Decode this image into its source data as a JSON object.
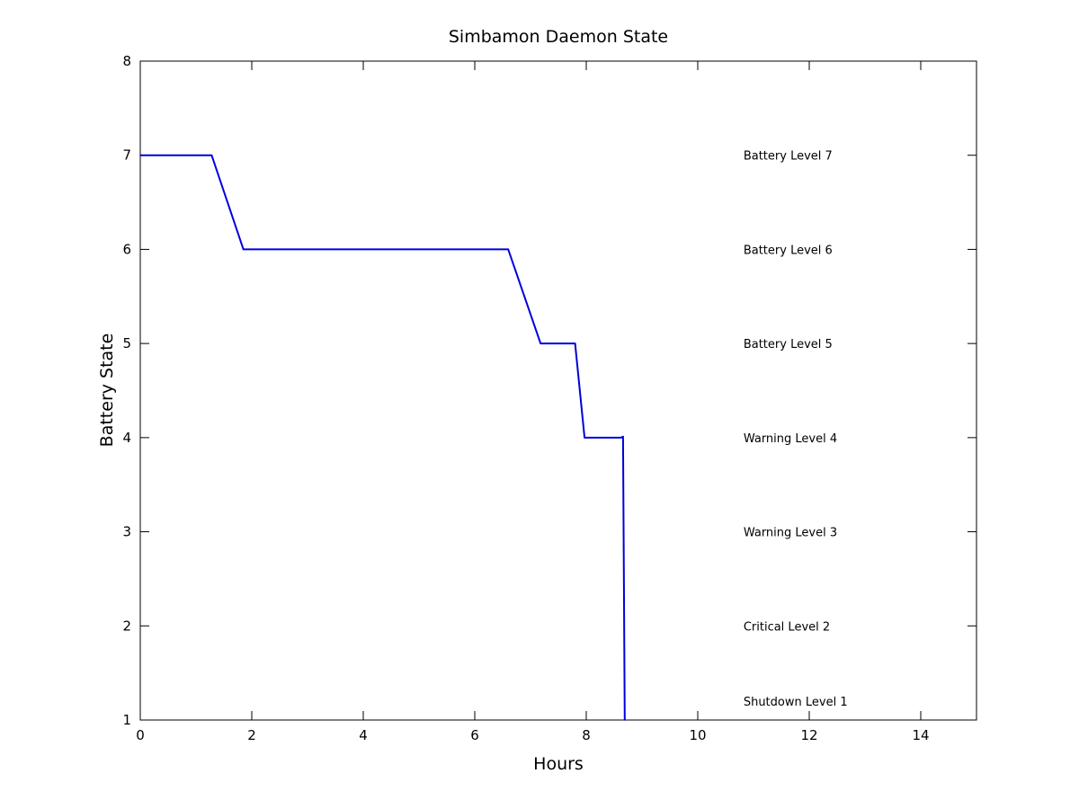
{
  "chart_data": {
    "type": "line",
    "title": "Simbamon Daemon State",
    "xlabel": "Hours",
    "ylabel": "Battery State",
    "xlim": [
      0,
      15
    ],
    "ylim": [
      1,
      8
    ],
    "x_ticks": [
      0,
      2,
      4,
      6,
      8,
      10,
      12,
      14
    ],
    "y_ticks": [
      1,
      2,
      3,
      4,
      5,
      6,
      7,
      8
    ],
    "grid": false,
    "legend": "none",
    "series": [
      {
        "color": "#0000dd",
        "x": [
          0,
          1.28,
          1.85,
          6.6,
          7.18,
          7.8,
          7.97,
          8.3,
          8.5,
          8.62,
          8.66,
          8.69
        ],
        "y": [
          7,
          7,
          6,
          6,
          5,
          5,
          4,
          4,
          4,
          4,
          4.01,
          1
        ]
      }
    ],
    "annotations": [
      {
        "text": "Battery Level 7",
        "x": 10.82,
        "y": 7
      },
      {
        "text": "Battery Level 6",
        "x": 10.82,
        "y": 6
      },
      {
        "text": "Battery Level 5",
        "x": 10.82,
        "y": 5
      },
      {
        "text": "Warning Level 4",
        "x": 10.82,
        "y": 4
      },
      {
        "text": "Warning Level 3",
        "x": 10.82,
        "y": 3
      },
      {
        "text": "Critical Level 2",
        "x": 10.82,
        "y": 2
      },
      {
        "text": "Shutdown Level 1",
        "x": 10.82,
        "y": 1.2
      }
    ]
  }
}
